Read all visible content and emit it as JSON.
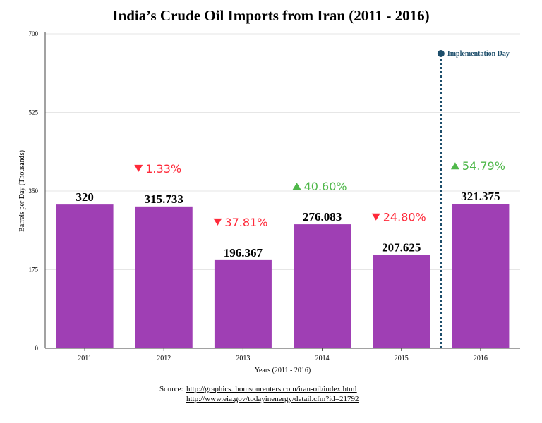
{
  "chart_data": {
    "type": "bar",
    "title": "India’s Crude Oil Imports from Iran (2011 - 2016)",
    "xlabel": "Years (2011 - 2016)",
    "ylabel": "Barrels per Day (Thousands)",
    "ylim": [
      0,
      700
    ],
    "yticks": [
      "0",
      "175",
      "350",
      "525",
      "700"
    ],
    "grid": true,
    "categories": [
      "2011",
      "2012",
      "2013",
      "2014",
      "2015",
      "2016"
    ],
    "values": [
      320,
      315.733,
      196.367,
      276.083,
      207.625,
      321.375
    ],
    "value_labels": [
      "320",
      "315.733",
      "196.367",
      "276.083",
      "207.625",
      "321.375"
    ],
    "bar_color": "#9f3fb4",
    "changes": [
      null,
      {
        "direction": "down",
        "text": "1.33%"
      },
      {
        "direction": "down",
        "text": "37.81%"
      },
      {
        "direction": "up",
        "text": "40.60%"
      },
      {
        "direction": "down",
        "text": "24.80%"
      },
      {
        "direction": "up",
        "text": "54.79%"
      }
    ],
    "change_colors": {
      "down": "#ff2a3a",
      "up": "#4fb84a"
    },
    "marker": {
      "label": "Implementation Day",
      "position": "between 2015 and 2016",
      "color": "#1d4e6b"
    }
  },
  "source": {
    "label": "Source:",
    "links": [
      "http://graphics.thomsonreuters.com/iran-oil/index.html",
      "http://www.eia.gov/todayinenergy/detail.cfm?id=21792"
    ]
  }
}
